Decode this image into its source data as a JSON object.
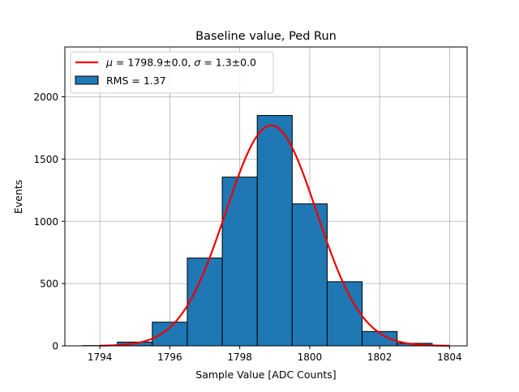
{
  "chart_data": {
    "type": "bar",
    "title": "Baseline value, Ped Run",
    "xlabel": "Sample Value [ADC Counts]",
    "ylabel": "Events",
    "xlim": [
      1793,
      1804.5
    ],
    "ylim": [
      0,
      2400
    ],
    "grid": true,
    "xticks": [
      1794,
      1796,
      1798,
      1800,
      1802,
      1804
    ],
    "yticks": [
      0,
      500,
      1000,
      1500,
      2000
    ],
    "bin_edges": [
      1793.5,
      1794.5,
      1795.5,
      1796.5,
      1797.5,
      1798.5,
      1799.5,
      1800.5,
      1801.5,
      1802.5,
      1803.5
    ],
    "counts": [
      2,
      30,
      190,
      705,
      1355,
      1850,
      1140,
      515,
      115,
      20
    ],
    "bar_color": "#1f77b4",
    "fit_color": "#ee0000",
    "fit": {
      "mu": 1798.9,
      "sigma": 1.3,
      "amplitude": 1770,
      "x_range": [
        1794,
        1804
      ]
    },
    "legend": {
      "placement": "top-left",
      "fit_label": {
        "mu_sym": "μ",
        "mu_text": " = 1798.9±0.0, ",
        "sigma_sym": "σ",
        "sigma_text": " = 1.3±0.0"
      },
      "hist_label": "RMS = 1.37"
    }
  }
}
